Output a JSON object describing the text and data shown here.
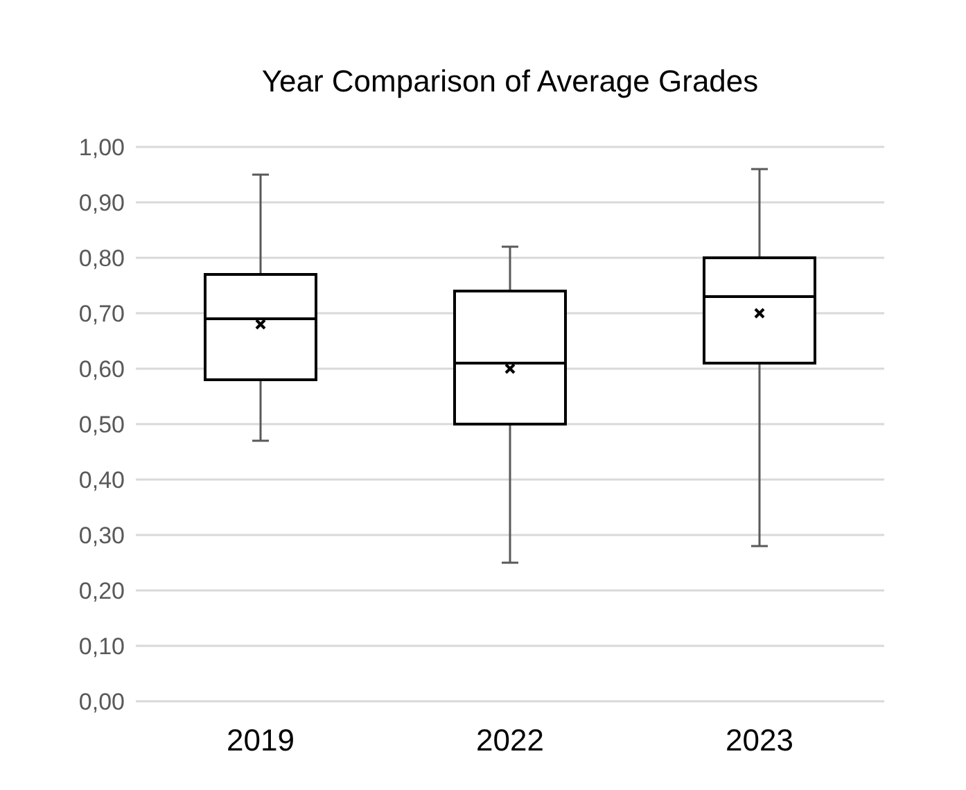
{
  "chart_data": {
    "type": "box",
    "title": "Year Comparison of Average Grades",
    "categories": [
      "2019",
      "2022",
      "2023"
    ],
    "boxes": [
      {
        "low": 0.47,
        "q1": 0.58,
        "median": 0.69,
        "q3": 0.77,
        "high": 0.95,
        "mean": 0.68
      },
      {
        "low": 0.25,
        "q1": 0.5,
        "median": 0.61,
        "q3": 0.74,
        "high": 0.82,
        "mean": 0.6
      },
      {
        "low": 0.28,
        "q1": 0.61,
        "median": 0.73,
        "q3": 0.8,
        "high": 0.96,
        "mean": 0.7
      }
    ],
    "ylim": [
      0,
      1
    ],
    "yticks": [
      {
        "value": 0,
        "label": "0,00"
      },
      {
        "value": 0.1,
        "label": "0,10"
      },
      {
        "value": 0.2,
        "label": "0,20"
      },
      {
        "value": 0.3,
        "label": "0,30"
      },
      {
        "value": 0.4,
        "label": "0,40"
      },
      {
        "value": 0.5,
        "label": "0,50"
      },
      {
        "value": 0.6,
        "label": "0,60"
      },
      {
        "value": 0.7,
        "label": "0,70"
      },
      {
        "value": 0.8,
        "label": "0,80"
      },
      {
        "value": 0.9,
        "label": "0,90"
      },
      {
        "value": 1,
        "label": "1,00"
      }
    ],
    "grid": "y",
    "marker": "cross"
  }
}
